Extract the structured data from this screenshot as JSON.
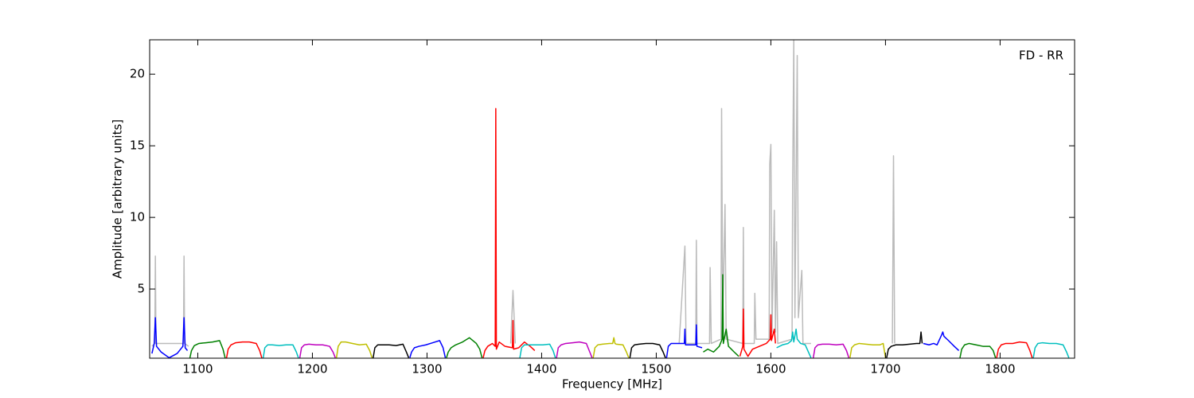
{
  "chart_data": {
    "type": "line",
    "annotation": "FD - RR",
    "xlabel": "Frequency [MHz]",
    "ylabel": "Amplitude [arbitrary units]",
    "xlim": [
      1058,
      1865
    ],
    "ylim": [
      0.17,
      22.4
    ],
    "xticks": [
      1100,
      1200,
      1300,
      1400,
      1500,
      1600,
      1700,
      1800
    ],
    "yticks": [
      5,
      10,
      15,
      20
    ],
    "series": [
      {
        "color": "#bbbbbb",
        "x": [
          1060,
          1062.5,
          1063,
          1063.5,
          1087.5,
          1088,
          1088.5,
          1092,
          1093,
          1373,
          1375,
          1377,
          1378,
          1520,
          1525,
          1526,
          1534.5,
          1535,
          1535.5,
          1546.5,
          1547,
          1548,
          1556.5,
          1557,
          1558,
          1560,
          1561,
          1575.5,
          1576,
          1576.5,
          1585.5,
          1586,
          1587,
          1598.5,
          1599,
          1600,
          1601,
          1603,
          1604,
          1605,
          1606,
          1618.5,
          1619,
          1620,
          1621,
          1623,
          1624,
          1627,
          1628,
          1635,
          1636,
          1706,
          1707,
          1708
        ],
        "values": [
          1.0,
          1.2,
          7.3,
          1.2,
          1.2,
          7.3,
          1.2,
          1.0,
          null,
          1.2,
          4.9,
          1.2,
          null,
          1.2,
          8.0,
          1.2,
          1.2,
          8.4,
          1.2,
          1.2,
          6.5,
          1.2,
          1.5,
          17.6,
          3,
          10.9,
          1.5,
          1.2,
          9.3,
          1.2,
          1.2,
          4.7,
          1.5,
          1.5,
          13.7,
          15.1,
          2,
          10.5,
          2,
          8.3,
          1.2,
          1.5,
          12.3,
          22.4,
          3,
          21.3,
          3,
          6.3,
          1.2,
          1.2,
          null,
          1.2,
          14.3,
          1.2
        ]
      },
      {
        "color": "#0000ff",
        "x": [
          1060,
          1062,
          1063,
          1064,
          1068,
          1075,
          1082,
          1087,
          1088,
          1089,
          1091
        ],
        "values": [
          0.5,
          1.2,
          3.0,
          1.0,
          0.6,
          0.2,
          0.5,
          1.0,
          3.0,
          0.9,
          0.7
        ]
      },
      {
        "color": "#008000",
        "x": [
          1093,
          1094.5,
          1097,
          1101,
          1107,
          1113,
          1119,
          1122,
          1124
        ],
        "values": [
          0.15,
          0.7,
          1.05,
          1.2,
          1.25,
          1.3,
          1.4,
          0.8,
          0.15
        ]
      },
      {
        "color": "#ff0000",
        "x": [
          1125,
          1126.5,
          1129,
          1133,
          1139,
          1145,
          1151,
          1154,
          1156
        ],
        "values": [
          0.15,
          0.8,
          1.1,
          1.25,
          1.3,
          1.3,
          1.2,
          0.7,
          0.15
        ]
      },
      {
        "color": "#00bfbf",
        "x": [
          1157,
          1158.5,
          1161,
          1165,
          1171,
          1177,
          1183,
          1186,
          1188
        ],
        "values": [
          0.15,
          0.9,
          1.1,
          1.1,
          1.05,
          1.1,
          1.1,
          0.6,
          0.15
        ]
      },
      {
        "color": "#bf00bf",
        "x": [
          1189,
          1190.5,
          1193,
          1197,
          1203,
          1209,
          1215,
          1218,
          1220
        ],
        "values": [
          0.2,
          0.9,
          1.1,
          1.15,
          1.1,
          1.1,
          1.0,
          0.6,
          0.2
        ]
      },
      {
        "color": "#bfbf00",
        "x": [
          1221,
          1222.5,
          1225,
          1229,
          1235,
          1241,
          1247,
          1250,
          1252
        ],
        "values": [
          0.2,
          1.0,
          1.3,
          1.3,
          1.2,
          1.1,
          1.15,
          0.7,
          0.2
        ]
      },
      {
        "color": "#000000",
        "x": [
          1253,
          1254.5,
          1257,
          1261,
          1267,
          1273,
          1279,
          1282,
          1284
        ],
        "values": [
          0.2,
          0.9,
          1.1,
          1.1,
          1.1,
          1.05,
          1.15,
          0.6,
          0.2
        ]
      },
      {
        "color": "#0000ff",
        "x": [
          1285,
          1286.5,
          1289,
          1293,
          1299,
          1305,
          1311,
          1314,
          1316
        ],
        "values": [
          0.2,
          0.6,
          0.9,
          1.0,
          1.1,
          1.25,
          1.4,
          0.9,
          0.2
        ]
      },
      {
        "color": "#008000",
        "x": [
          1317,
          1318.5,
          1321,
          1325,
          1331,
          1337,
          1343,
          1346,
          1348
        ],
        "values": [
          0.2,
          0.6,
          0.9,
          1.1,
          1.3,
          1.6,
          1.2,
          0.8,
          0.2
        ]
      },
      {
        "color": "#ff0000",
        "x": [
          1349,
          1350.5,
          1353,
          1357,
          1359.5,
          1360,
          1360.5,
          1363,
          1368,
          1374.5,
          1375,
          1375.5,
          1380,
          1385,
          1390,
          1394
        ],
        "values": [
          0.2,
          0.7,
          1.0,
          1.2,
          1.0,
          17.6,
          0.8,
          1.3,
          1.0,
          0.9,
          2.8,
          0.8,
          0.9,
          1.3,
          1.0,
          0.7
        ]
      },
      {
        "color": "#00bfbf",
        "x": [
          1381,
          1382.5,
          1385,
          1389,
          1395,
          1401,
          1407,
          1410,
          1412
        ],
        "values": [
          0.2,
          0.9,
          1.1,
          1.1,
          1.1,
          1.1,
          1.15,
          0.7,
          0.2
        ]
      },
      {
        "color": "#bf00bf",
        "x": [
          1413,
          1414.5,
          1417,
          1421,
          1427,
          1433,
          1439,
          1442,
          1444
        ],
        "values": [
          0.2,
          0.9,
          1.1,
          1.2,
          1.25,
          1.3,
          1.2,
          0.6,
          0.2
        ]
      },
      {
        "color": "#bfbf00",
        "x": [
          1445,
          1446.5,
          1449,
          1453,
          1459,
          1462,
          1463,
          1464,
          1465,
          1471,
          1474,
          1476
        ],
        "values": [
          0.2,
          0.9,
          1.1,
          1.15,
          1.2,
          1.2,
          1.6,
          1.2,
          1.15,
          1.1,
          0.6,
          0.2
        ]
      },
      {
        "color": "#000000",
        "x": [
          1477,
          1478.5,
          1481,
          1485,
          1491,
          1497,
          1503,
          1506,
          1508
        ],
        "values": [
          0.2,
          0.9,
          1.1,
          1.15,
          1.2,
          1.2,
          1.1,
          0.6,
          0.2
        ]
      },
      {
        "color": "#0000ff",
        "x": [
          1509,
          1510.5,
          1513,
          1517,
          1524.5,
          1525,
          1525.5,
          1530,
          1534.5,
          1535,
          1535.5,
          1540
        ],
        "values": [
          0.2,
          1.0,
          1.2,
          1.2,
          1.2,
          2.2,
          1.1,
          1.1,
          1.1,
          2.5,
          1.0,
          0.9
        ]
      },
      {
        "color": "#008000",
        "x": [
          1541,
          1545,
          1550,
          1555,
          1557.5,
          1558,
          1558.5,
          1561,
          1563,
          1568,
          1572
        ],
        "values": [
          0.6,
          0.8,
          0.6,
          1.0,
          1.5,
          6.0,
          1.2,
          2.2,
          1.0,
          0.6,
          0.3
        ]
      },
      {
        "color": "#ff0000",
        "x": [
          1573,
          1575.5,
          1576,
          1576.5,
          1580,
          1584,
          1590,
          1596,
          1599.5,
          1600,
          1600.5,
          1603,
          1604
        ],
        "values": [
          0.3,
          1.0,
          3.6,
          0.8,
          0.3,
          0.8,
          1.0,
          1.2,
          1.5,
          3.2,
          1.4,
          2.2,
          1.2
        ]
      },
      {
        "color": "#00bfbf",
        "x": [
          1605,
          1610,
          1615,
          1618,
          1619,
          1620,
          1622,
          1623,
          1626,
          1630,
          1635
        ],
        "values": [
          0.9,
          1.1,
          1.2,
          1.4,
          2.0,
          1.3,
          2.2,
          1.5,
          1.2,
          1.1,
          0.2
        ]
      },
      {
        "color": "#bf00bf",
        "x": [
          1637,
          1638.5,
          1641,
          1645,
          1651,
          1657,
          1663,
          1666,
          1668
        ],
        "values": [
          0.2,
          0.9,
          1.1,
          1.15,
          1.15,
          1.1,
          1.15,
          0.7,
          0.2
        ]
      },
      {
        "color": "#bfbf00",
        "x": [
          1669,
          1670.5,
          1673,
          1677,
          1683,
          1689,
          1695,
          1698,
          1700
        ],
        "values": [
          0.2,
          0.9,
          1.1,
          1.2,
          1.15,
          1.1,
          1.1,
          1.2,
          0.2
        ]
      },
      {
        "color": "#000000",
        "x": [
          1701,
          1702.5,
          1705,
          1709,
          1715,
          1721,
          1727,
          1730,
          1731,
          1732
        ],
        "values": [
          0.2,
          0.8,
          1.0,
          1.1,
          1.1,
          1.15,
          1.2,
          1.2,
          2.0,
          1.2
        ]
      },
      {
        "color": "#0000ff",
        "x": [
          1733,
          1738,
          1742,
          1745,
          1749,
          1750,
          1751,
          1755,
          1760,
          1764
        ],
        "values": [
          1.2,
          1.1,
          1.2,
          1.1,
          1.8,
          2.0,
          1.7,
          1.4,
          1.0,
          0.7
        ]
      },
      {
        "color": "#008000",
        "x": [
          1765,
          1766.5,
          1769,
          1773,
          1779,
          1785,
          1791,
          1794,
          1796
        ],
        "values": [
          0.2,
          0.8,
          1.1,
          1.2,
          1.1,
          1.0,
          1.0,
          0.7,
          0.2
        ]
      },
      {
        "color": "#ff0000",
        "x": [
          1797,
          1798.5,
          1801,
          1805,
          1811,
          1817,
          1823,
          1826,
          1828
        ],
        "values": [
          0.2,
          0.8,
          1.1,
          1.2,
          1.2,
          1.3,
          1.25,
          0.7,
          0.2
        ]
      },
      {
        "color": "#00bfbf",
        "x": [
          1829,
          1830.5,
          1833,
          1837,
          1843,
          1849,
          1855,
          1858,
          1860
        ],
        "values": [
          0.2,
          0.9,
          1.2,
          1.25,
          1.2,
          1.2,
          1.1,
          0.6,
          0.2
        ]
      }
    ]
  }
}
